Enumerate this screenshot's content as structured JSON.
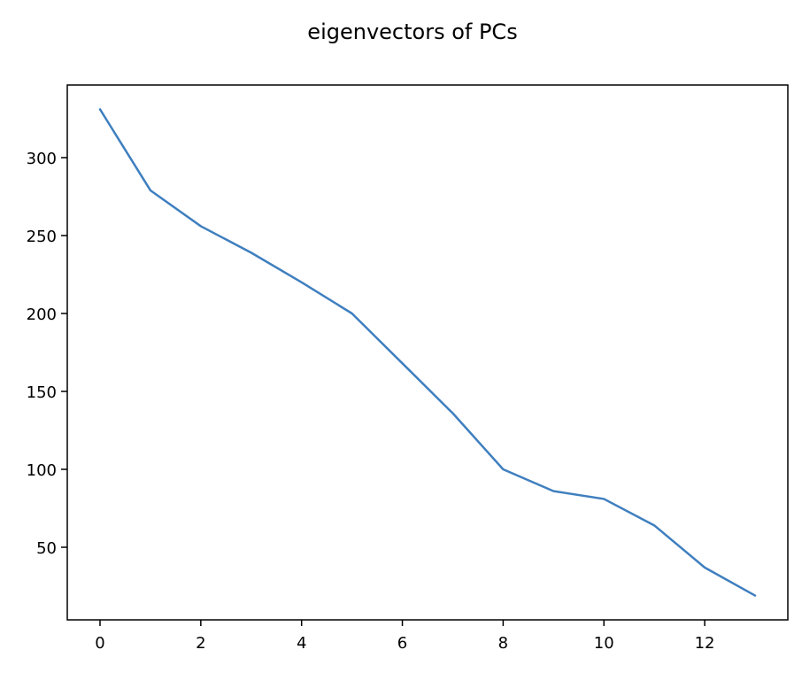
{
  "chart_data": {
    "type": "line",
    "title": "eigenvectors of PCs",
    "xlabel": "",
    "ylabel": "",
    "x": [
      0,
      1,
      2,
      3,
      4,
      5,
      6,
      7,
      8,
      9,
      10,
      11,
      12,
      13
    ],
    "series": [
      {
        "values": [
          331,
          279,
          256,
          239,
          220,
          200,
          168,
          136,
          100,
          86,
          81,
          64,
          37,
          19
        ],
        "color": "#3f7fbf"
      }
    ],
    "xticks": [
      0,
      2,
      4,
      6,
      8,
      10,
      12
    ],
    "yticks": [
      50,
      100,
      150,
      200,
      250,
      300
    ],
    "xlim": [
      -0.65,
      13.65
    ],
    "ylim": [
      3.4,
      346.6
    ],
    "grid": false,
    "legend": "none"
  }
}
